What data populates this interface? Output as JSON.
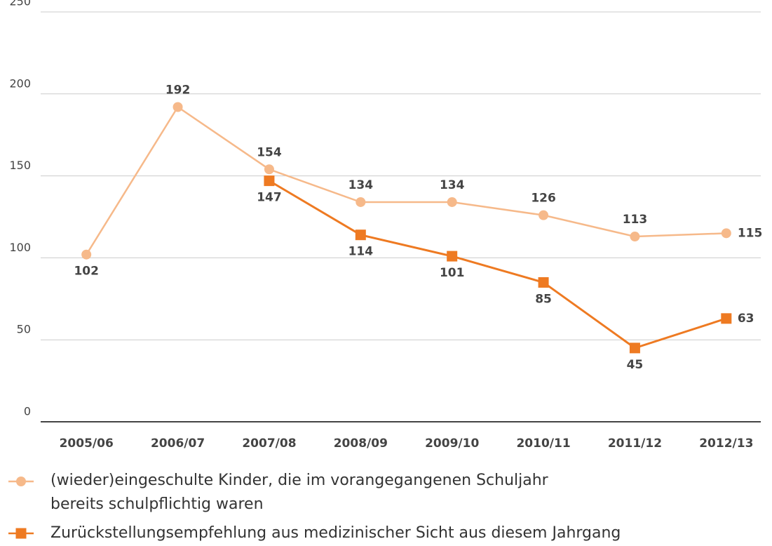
{
  "chart_data": {
    "type": "line",
    "categories": [
      "2005/06",
      "2006/07",
      "2007/08",
      "2008/09",
      "2009/10",
      "2010/11",
      "2011/12",
      "2012/13"
    ],
    "series": [
      {
        "name": "(wieder)eingeschulte Kinder, die im vorangegangenen Schuljahr bereits schulpflichtig waren",
        "color": "#f6b98a",
        "marker": "circle",
        "values": [
          102,
          192,
          154,
          134,
          134,
          126,
          113,
          115
        ]
      },
      {
        "name": "Zurückstellungsempfehlung aus medizinischer Sicht aus diesem Jahrgang",
        "color": "#ee7a22",
        "marker": "square",
        "values": [
          null,
          null,
          147,
          114,
          101,
          85,
          45,
          63
        ]
      }
    ],
    "ylim": [
      0,
      250
    ],
    "yticks": [
      0,
      50,
      100,
      150,
      200,
      250
    ],
    "grid": true
  }
}
